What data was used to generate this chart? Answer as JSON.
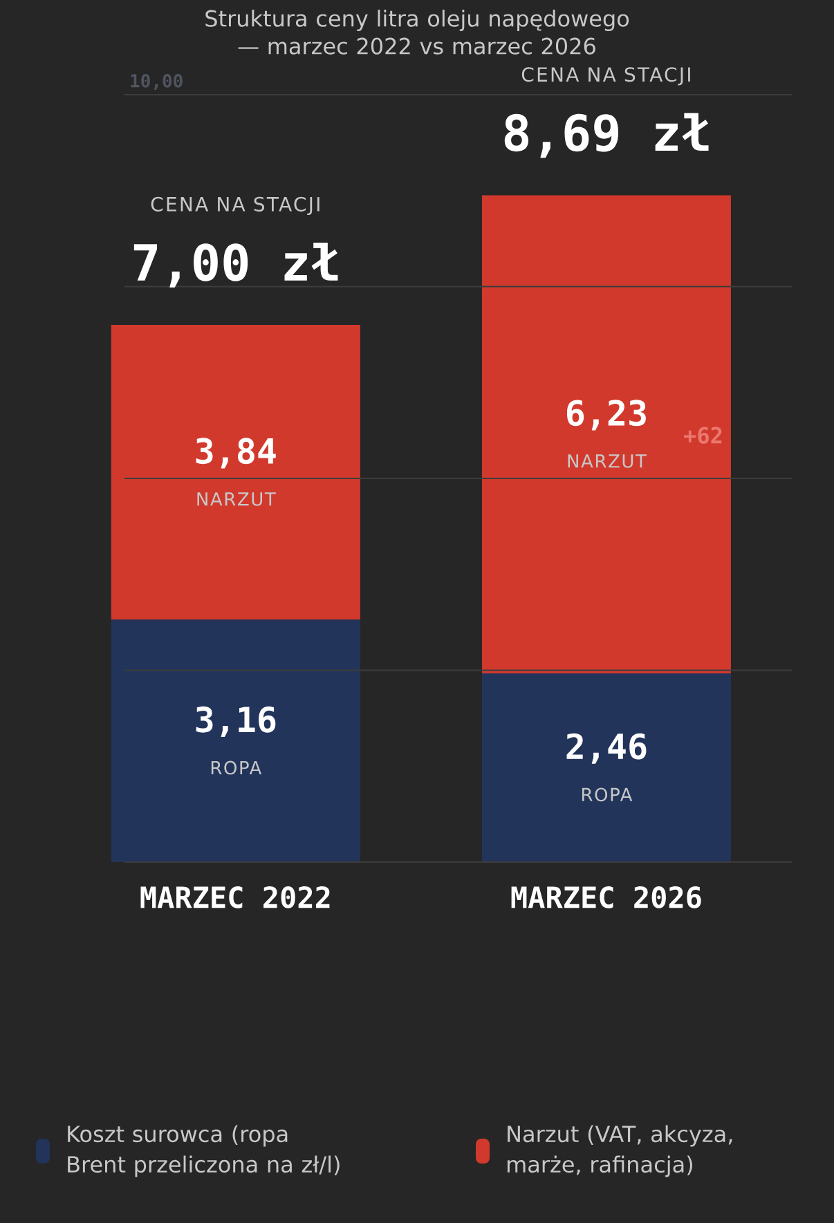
{
  "chart_data": {
    "type": "bar",
    "stacked": true,
    "title": "Struktura ceny litra oleju napędowego — marzec 2022 vs marzec 2026",
    "categories": [
      "MARZEC 2022",
      "MARZEC 2026"
    ],
    "series": [
      {
        "name": "Koszt surowca (ropa Brent przeliczona na zł/l)",
        "color": "#22345a",
        "values": [
          3.16,
          2.46
        ],
        "value_labels": [
          "3,16",
          "2,46"
        ]
      },
      {
        "name": "Narzut (VAT, akcyza, marże, rafinacja)",
        "color": "#d2392d",
        "values": [
          3.84,
          6.23
        ],
        "value_labels": [
          "3,84",
          "6,23"
        ]
      }
    ],
    "totals": [
      "7,00 zł",
      "8,69 zł"
    ],
    "ylim": [
      0,
      10
    ],
    "ref_lines": [
      {
        "axis": "y",
        "value": 0,
        "color": "#3c3c3c"
      },
      {
        "axis": "y",
        "value": 2.5,
        "color": "#3c3c3c"
      },
      {
        "axis": "y",
        "value": 5,
        "color": "#3c3c3c"
      },
      {
        "axis": "y",
        "value": 7.5,
        "color": "#3c3c3c"
      },
      {
        "axis": "y",
        "value": 10,
        "label": "10,00",
        "color": "#3c3c3c"
      }
    ],
    "legend": "bottom",
    "data_labels": true,
    "annotations": [
      "CENA NA STACJI",
      "CENA NA STACJI",
      "ROPA",
      "ROPA",
      "NARZUT",
      "NARZUT",
      "+62"
    ]
  }
}
